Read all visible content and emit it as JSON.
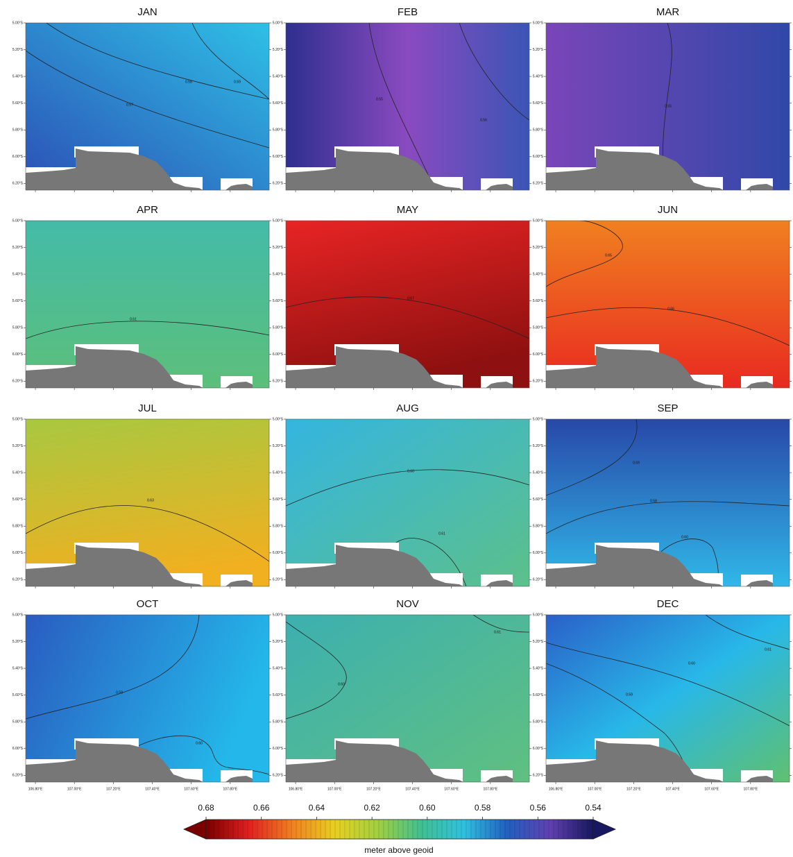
{
  "figure": {
    "lat_lim": [
      5.0,
      6.25
    ],
    "lon_lim": [
      106.75,
      108.0
    ],
    "lat_ticks": [
      {
        "value": 5.0,
        "label": "5.00°S"
      },
      {
        "value": 5.2,
        "label": "5.20°S"
      },
      {
        "value": 5.4,
        "label": "5.40°S"
      },
      {
        "value": 5.6,
        "label": "5.60°S"
      },
      {
        "value": 5.8,
        "label": "5.80°S"
      },
      {
        "value": 6.0,
        "label": "6.00°S"
      },
      {
        "value": 6.2,
        "label": "6.20°S"
      }
    ],
    "lon_ticks": [
      {
        "value": 106.8,
        "label": "106.80°E"
      },
      {
        "value": 107.0,
        "label": "107.00°E"
      },
      {
        "value": 107.2,
        "label": "107.20°E"
      },
      {
        "value": 107.4,
        "label": "107.40°E"
      },
      {
        "value": 107.6,
        "label": "107.60°E"
      },
      {
        "value": 107.8,
        "label": "107.80°E"
      }
    ],
    "panels": [
      {
        "title": "JAN",
        "colors": [
          "#2c4fb5",
          "#2ec0e6"
        ],
        "contour_labels": [
          "0.57",
          "0.58",
          "0.59"
        ]
      },
      {
        "title": "FEB",
        "colors": [
          "#2e2f8f",
          "#8a4ac0",
          "#3a55b5"
        ],
        "contour_labels": [
          "0.55",
          "0.56"
        ]
      },
      {
        "title": "MAR",
        "colors": [
          "#7a45b8",
          "#3048a8"
        ],
        "contour_labels": [
          "0.55"
        ]
      },
      {
        "title": "APR",
        "colors": [
          "#44bba8",
          "#5cbf7a"
        ],
        "contour_labels": [
          "0.61"
        ]
      },
      {
        "title": "MAY",
        "colors": [
          "#e82424",
          "#8e1010"
        ],
        "contour_labels": [
          "0.67"
        ]
      },
      {
        "title": "JUN",
        "colors": [
          "#f08020",
          "#e82a20"
        ],
        "contour_labels": [
          "0.65",
          "0.66"
        ]
      },
      {
        "title": "JUL",
        "colors": [
          "#a8c840",
          "#f0b020"
        ],
        "contour_labels": [
          "0.63"
        ]
      },
      {
        "title": "AUG",
        "colors": [
          "#34b5e0",
          "#5cc08a"
        ],
        "contour_labels": [
          "0.60",
          "0.61"
        ]
      },
      {
        "title": "SEP",
        "colors": [
          "#2848a8",
          "#30b8e8"
        ],
        "contour_labels": [
          "0.59",
          "0.58",
          "0.60"
        ]
      },
      {
        "title": "OCT",
        "colors": [
          "#2a5cc0",
          "#24b8ea"
        ],
        "contour_labels": [
          "0.59",
          "0.60"
        ]
      },
      {
        "title": "NOV",
        "colors": [
          "#3cb0b0",
          "#60c080"
        ],
        "contour_labels": [
          "0.61",
          "0.60"
        ]
      },
      {
        "title": "DEC",
        "colors": [
          "#2a60c8",
          "#28b8e8",
          "#60c070"
        ],
        "contour_labels": [
          "0.61",
          "0.60",
          "0.59"
        ]
      }
    ],
    "colorbar": {
      "range": [
        0.68,
        0.54
      ],
      "ticks": [
        0.68,
        0.66,
        0.64,
        0.62,
        {
          "value": 0.6,
          "label": "0.60"
        },
        0.58,
        0.56,
        0.54
      ],
      "colors": [
        "#7a0000",
        "#e02020",
        "#f08020",
        "#e8d020",
        "#a0d040",
        "#40c090",
        "#30c0e0",
        "#2060c0",
        "#6040b0",
        "#181860"
      ],
      "label": "meter above geoid"
    }
  }
}
